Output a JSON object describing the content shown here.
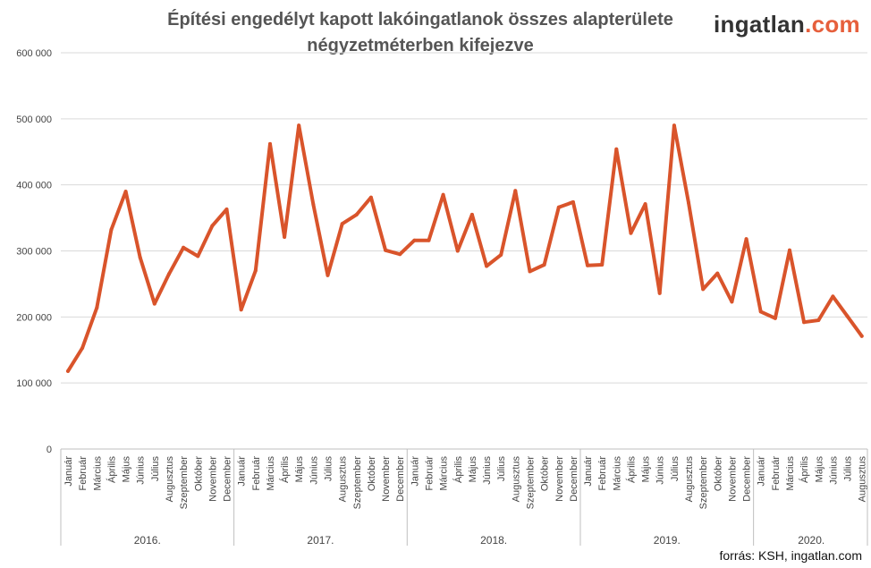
{
  "title": {
    "line1": "Építési engedélyt kapott lakóingatlanok összes alapterülete",
    "line2": "négyzetméterben kifejezve"
  },
  "logo": {
    "main": "ingatlan",
    "tld": ".com"
  },
  "source": "forrás: KSH, ingatlan.com",
  "colors": {
    "line": "#d9542b",
    "grid": "#d9d9d9",
    "axis": "#bfbfbf",
    "logo_accent": "#e65f3c"
  },
  "chart_data": {
    "type": "line",
    "title": "Építési engedélyt kapott lakóingatlanok összes alapterülete négyzetméterben kifejezve",
    "ylim": [
      0,
      600000
    ],
    "yticks": [
      0,
      100000,
      200000,
      300000,
      400000,
      500000,
      600000
    ],
    "ytick_labels": [
      "0",
      "100 000",
      "200 000",
      "300 000",
      "400 000",
      "500 000",
      "600 000"
    ],
    "grid": true,
    "years": [
      {
        "label": "2016.",
        "months": [
          "Január",
          "Február",
          "Március",
          "Április",
          "Május",
          "Június",
          "Július",
          "Augusztus",
          "Szeptember",
          "Október",
          "November",
          "December"
        ],
        "values": [
          118000,
          153000,
          214000,
          332000,
          390000,
          290000,
          220000,
          265000,
          305000,
          292000,
          338000,
          363000
        ]
      },
      {
        "label": "2017.",
        "months": [
          "Január",
          "Február",
          "Március",
          "Április",
          "Május",
          "Június",
          "Július",
          "Augusztus",
          "Szeptember",
          "Október",
          "November",
          "December"
        ],
        "values": [
          211000,
          270000,
          462000,
          321000,
          490000,
          370000,
          263000,
          341000,
          355000,
          381000,
          301000,
          295000
        ]
      },
      {
        "label": "2018.",
        "months": [
          "Január",
          "Február",
          "Március",
          "Április",
          "Május",
          "Június",
          "Július",
          "Augusztus",
          "Szeptember",
          "Október",
          "November",
          "December"
        ],
        "values": [
          316000,
          316000,
          385000,
          300000,
          355000,
          277000,
          294000,
          391000,
          269000,
          279000,
          366000,
          374000
        ]
      },
      {
        "label": "2019.",
        "months": [
          "Január",
          "Február",
          "Március",
          "Április",
          "Május",
          "Június",
          "Július",
          "Augusztus",
          "Szeptember",
          "Október",
          "November",
          "December"
        ],
        "values": [
          278000,
          279000,
          454000,
          327000,
          371000,
          236000,
          490000,
          373000,
          242000,
          266000,
          223000,
          318000
        ]
      },
      {
        "label": "2020.",
        "months": [
          "Január",
          "Február",
          "Március",
          "Április",
          "Május",
          "Június",
          "Július",
          "Augusztus"
        ],
        "values": [
          208000,
          198000,
          301000,
          192000,
          195000,
          231000,
          201000,
          171000
        ]
      }
    ]
  }
}
